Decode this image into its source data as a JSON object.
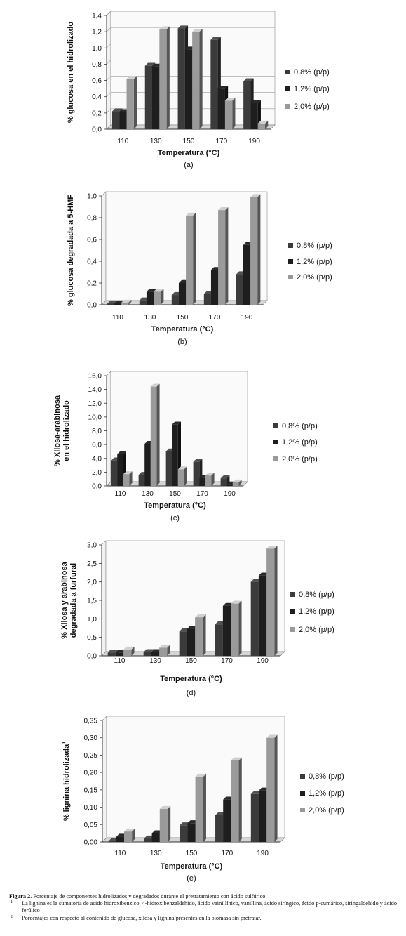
{
  "colors": {
    "s08": "#3b3b3b",
    "s12": "#1e1e1e",
    "s20": "#9a9a9a"
  },
  "chart_data": [
    {
      "type": "bar",
      "ylabel": "% glucosa en el hidrolizado",
      "xlabel": "Temperatura (°C)",
      "sublabel": "(a)",
      "categories": [
        "110",
        "130",
        "150",
        "170",
        "190"
      ],
      "ylim": [
        0,
        1.4
      ],
      "yticks": [
        "0,0",
        "0,2",
        "0,4",
        "0,6",
        "0,8",
        "1,0",
        "1,2",
        "1,4"
      ],
      "grid": true,
      "legend_position": "right",
      "series": [
        {
          "name": "0,8% (p/p)",
          "values": [
            0.22,
            0.78,
            1.24,
            1.1,
            0.59
          ]
        },
        {
          "name": "1,2% (p/p)",
          "values": [
            0.21,
            0.77,
            0.98,
            0.5,
            0.32
          ]
        },
        {
          "name": "2,0% (p/p)",
          "values": [
            0.62,
            1.23,
            1.2,
            0.35,
            0.07
          ]
        }
      ]
    },
    {
      "type": "bar",
      "ylabel": "% glucosa degradada a 5-HMF",
      "xlabel": "Temperatura (°C)",
      "sublabel": "(b)",
      "categories": [
        "110",
        "130",
        "150",
        "170",
        "190"
      ],
      "ylim": [
        0,
        1.0
      ],
      "yticks": [
        "0,0",
        "0,2",
        "0,4",
        "0,6",
        "0,8",
        "1,0"
      ],
      "grid": false,
      "legend_position": "right",
      "series": [
        {
          "name": "0,8% (p/p)",
          "values": [
            0.01,
            0.04,
            0.09,
            0.1,
            0.28
          ]
        },
        {
          "name": "1,2% (p/p)",
          "values": [
            0.01,
            0.12,
            0.2,
            0.32,
            0.55
          ]
        },
        {
          "name": "2,0% (p/p)",
          "values": [
            0.02,
            0.12,
            0.82,
            0.87,
            0.99
          ]
        }
      ]
    },
    {
      "type": "bar",
      "ylabel": "% Xilosa-arabinosa en el hidrolizado",
      "xlabel": "Temperatura (°C)",
      "sublabel": "(c)",
      "categories": [
        "110",
        "130",
        "150",
        "170",
        "190"
      ],
      "ylim": [
        0,
        16
      ],
      "yticks": [
        "0,0",
        "2,0",
        "4,0",
        "6,0",
        "8,0",
        "10,0",
        "12,0",
        "14,0",
        "16,0"
      ],
      "grid": false,
      "legend_position": "right",
      "series": [
        {
          "name": "0,8% (p/p)",
          "values": [
            3.7,
            1.6,
            5.0,
            3.5,
            1.1
          ]
        },
        {
          "name": "1,2% (p/p)",
          "values": [
            4.6,
            6.1,
            8.9,
            1.2,
            0.2
          ]
        },
        {
          "name": "2,0% (p/p)",
          "values": [
            1.7,
            14.4,
            2.4,
            1.5,
            0.5
          ]
        }
      ]
    },
    {
      "type": "bar",
      "ylabel": "% Xilosa y arabinosa degradada a furfural",
      "xlabel": "Temperatura (°C)",
      "sublabel": "(d)",
      "categories": [
        "110",
        "130",
        "150",
        "170",
        "190"
      ],
      "ylim": [
        0,
        3.0
      ],
      "yticks": [
        "0,0",
        "0,5",
        "1,0",
        "1,5",
        "2,0",
        "2,5",
        "3,0"
      ],
      "grid": false,
      "legend_position": "right",
      "series": [
        {
          "name": "0,8% (p/p)",
          "values": [
            0.09,
            0.1,
            0.66,
            0.85,
            2.0
          ]
        },
        {
          "name": "1,2% (p/p)",
          "values": [
            0.08,
            0.1,
            0.73,
            1.35,
            2.17
          ]
        },
        {
          "name": "2,0% (p/p)",
          "values": [
            0.17,
            0.22,
            1.04,
            1.41,
            2.9
          ]
        }
      ]
    },
    {
      "type": "bar",
      "ylabel": "% lignina hidrolizada",
      "ylabel_sup": "1",
      "xlabel": "Temperatura (°C)",
      "sublabel": "(e)",
      "categories": [
        "110",
        "130",
        "150",
        "170",
        "190"
      ],
      "ylim": [
        0,
        0.35
      ],
      "yticks": [
        "0,00",
        "0,05",
        "0,10",
        "0,15",
        "0,20",
        "0,25",
        "0,30",
        "0,35"
      ],
      "grid": false,
      "legend_position": "right",
      "series": [
        {
          "name": "0,8% (p/p)",
          "values": [
            0.002,
            0.01,
            0.048,
            0.077,
            0.138
          ]
        },
        {
          "name": "1,2% (p/p)",
          "values": [
            0.015,
            0.025,
            0.054,
            0.122,
            0.148
          ]
        },
        {
          "name": "2,0% (p/p)",
          "values": [
            0.03,
            0.095,
            0.188,
            0.235,
            0.3
          ]
        }
      ]
    }
  ],
  "caption": {
    "title_bold": "Figura 2",
    "title_rest": ". Porcentaje de componentes hidrolizados y degradados durante el pretratamiento con ácido sulfúrico.",
    "footnote1_mark": "1",
    "footnote1": "La lignina es la sumatoria de acido hidroxibenzico, 4-hidroxibenzaldehido, ácido vainillínico, vanillina, ácido siríngico, ácido p-cumárico, siringaldehido y ácido ferúlico",
    "footnote2_mark": "2",
    "footnote2": "Porcentajes con respecto al contenido de glucosa, xilosa y lignina presentes en la biomasa sin pretratar."
  }
}
